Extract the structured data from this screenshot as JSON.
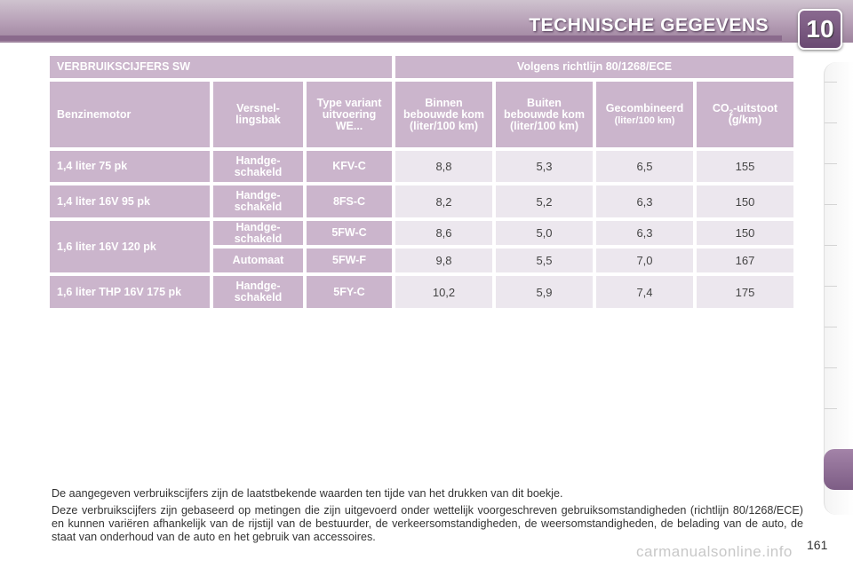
{
  "header": {
    "title": "TECHNISCHE GEGEVENS",
    "chapter": "10"
  },
  "table": {
    "section_title": "VERBRUIKSCIJFERS SW",
    "directive": "Volgens richtlijn 80/1268/ECE",
    "columns": {
      "engine": "Benzinemotor",
      "gearbox": "Versnel-lingsbak",
      "type": "Type variant uitvoering WE...",
      "urban": "Binnen bebouwde kom (liter/100 km)",
      "extra_urban": "Buiten bebouwde kom (liter/100 km)",
      "combined": "Gecombineerd",
      "combined_unit": "(liter/100 km)",
      "co2_prefix": "CO",
      "co2_sub": "2",
      "co2_suffix": "-uitstoot",
      "co2_unit": "(g/km)"
    },
    "rows": [
      {
        "engine": "1,4 liter 75 pk",
        "gearbox": "Handge-schakeld",
        "type": "KFV-C",
        "urban": "8,8",
        "extra_urban": "5,3",
        "combined": "6,5",
        "co2": "155"
      },
      {
        "engine": "1,4 liter 16V 95 pk",
        "gearbox": "Handge-schakeld",
        "type": "8FS-C",
        "urban": "8,2",
        "extra_urban": "5,2",
        "combined": "6,3",
        "co2": "150"
      },
      {
        "engine": "1,6 liter 16V 120 pk",
        "gearbox": "Handge-schakeld",
        "type": "5FW-C",
        "urban": "8,6",
        "extra_urban": "5,0",
        "combined": "6,3",
        "co2": "150"
      },
      {
        "engine": "1,6 liter 16V 120 pk",
        "gearbox": "Automaat",
        "type": "5FW-F",
        "urban": "9,8",
        "extra_urban": "5,5",
        "combined": "7,0",
        "co2": "167"
      },
      {
        "engine": "1,6 liter THP 16V 175 pk",
        "gearbox": "Handge-schakeld",
        "type": "5FY-C",
        "urban": "10,2",
        "extra_urban": "5,9",
        "combined": "7,4",
        "co2": "175"
      }
    ]
  },
  "notes": {
    "line1": "De aangegeven verbruikscijfers zijn de laatstbekende waarden ten tijde van het drukken van dit boekje.",
    "line2": "Deze verbruikscijfers zijn gebaseerd op metingen die zijn uitgevoerd onder wettelijk voorgeschreven gebruiksomstandigheden (richtlijn 80/1268/ECE) en kunnen variëren afhankelijk van de rijstijl van de bestuurder, de verkeersomstandigheden, de weersomstandigheden, de belading van de auto, de staat van onderhoud van de auto en het gebruik van accessoires."
  },
  "page_number": "161",
  "watermark": "carmanualsonline.info",
  "colors": {
    "header_cell": "#cbb5cc",
    "value_cell": "#ece7ee",
    "accent": "#8a6a8c"
  }
}
